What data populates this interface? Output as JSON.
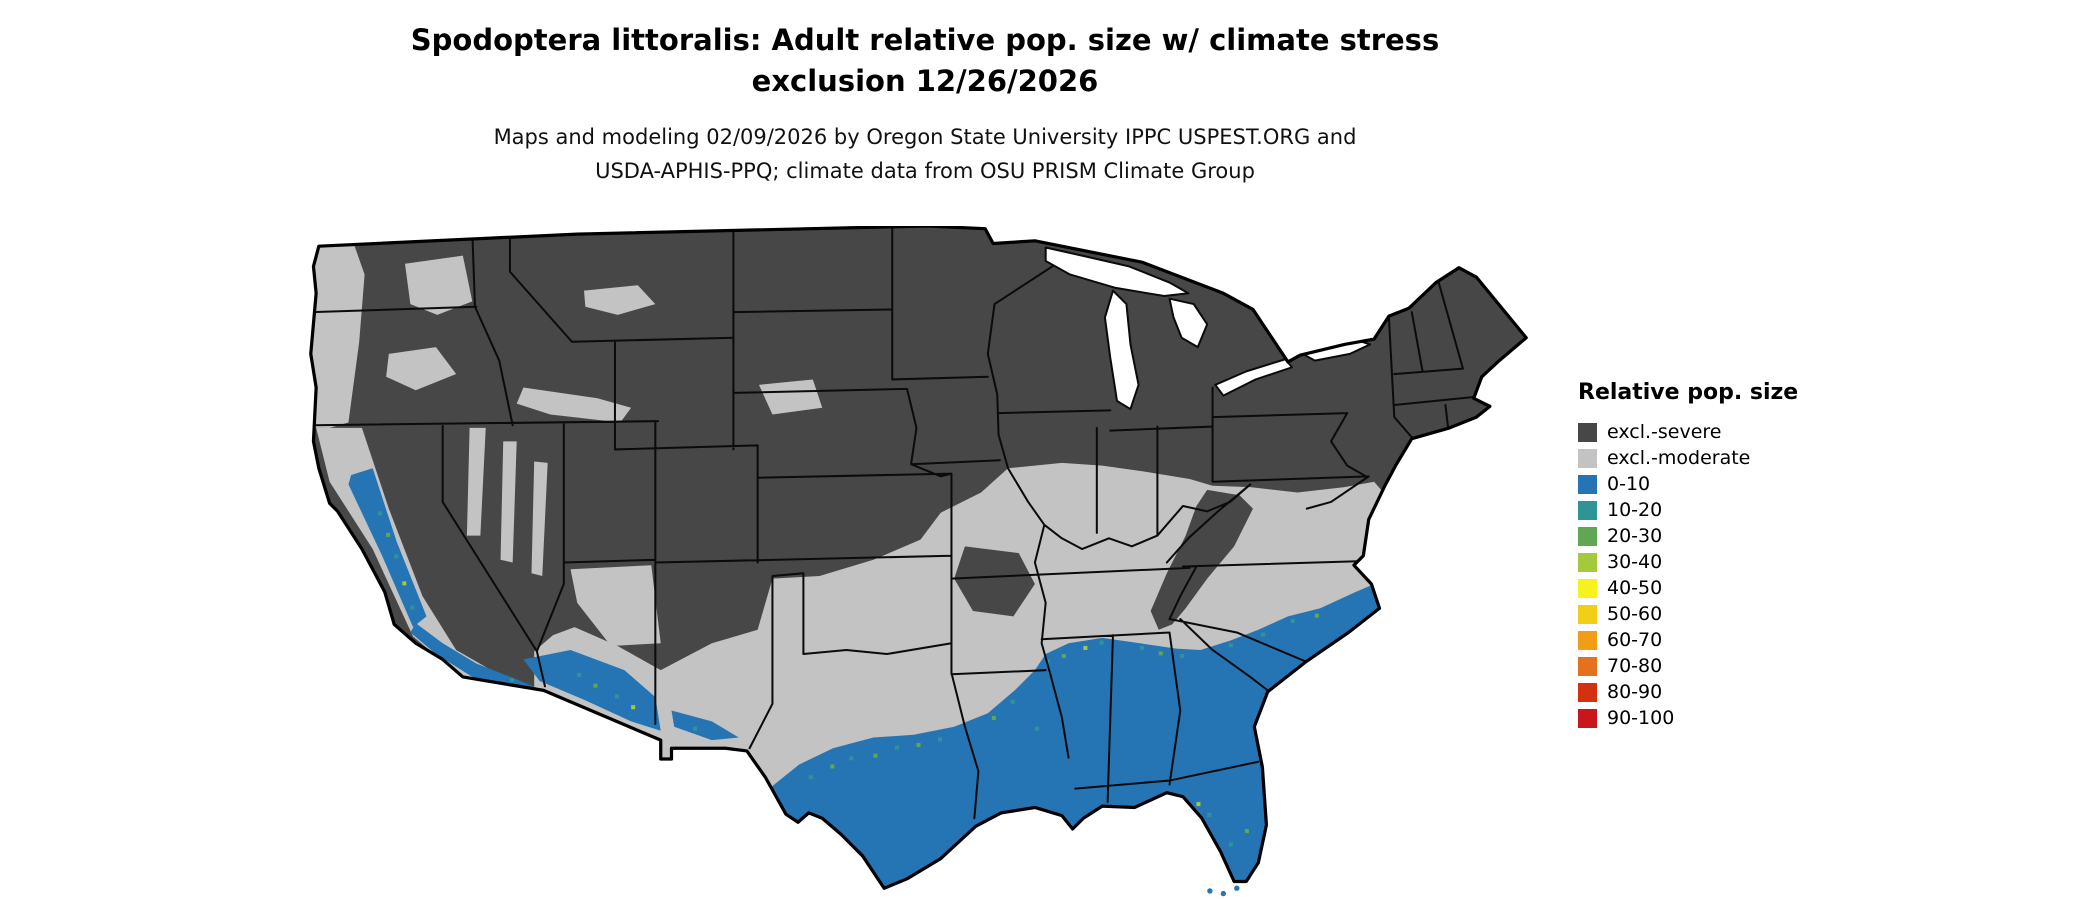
{
  "title": {
    "line1": "Spodoptera littoralis: Adult relative pop. size w/ climate stress",
    "line2": "exclusion 12/26/2026"
  },
  "subtitle": {
    "line1": "Maps and modeling 02/09/2026 by Oregon State University IPPC USPEST.ORG and",
    "line2": "USDA-APHIS-PPQ; climate data from OSU PRISM Climate Group"
  },
  "legend": {
    "title": "Relative pop. size",
    "items": [
      {
        "label": "excl.-severe",
        "color": "#474747"
      },
      {
        "label": "excl.-moderate",
        "color": "#c3c3c3"
      },
      {
        "label": "0-10",
        "color": "#2575b5"
      },
      {
        "label": "10-20",
        "color": "#2e9597"
      },
      {
        "label": "20-30",
        "color": "#61a653"
      },
      {
        "label": "30-40",
        "color": "#a3c93c"
      },
      {
        "label": "40-50",
        "color": "#f5f21e"
      },
      {
        "label": "50-60",
        "color": "#f3ce17"
      },
      {
        "label": "60-70",
        "color": "#f29d16"
      },
      {
        "label": "70-80",
        "color": "#e4711c"
      },
      {
        "label": "80-90",
        "color": "#d5310e"
      },
      {
        "label": "90-100",
        "color": "#c9161d"
      }
    ]
  }
}
